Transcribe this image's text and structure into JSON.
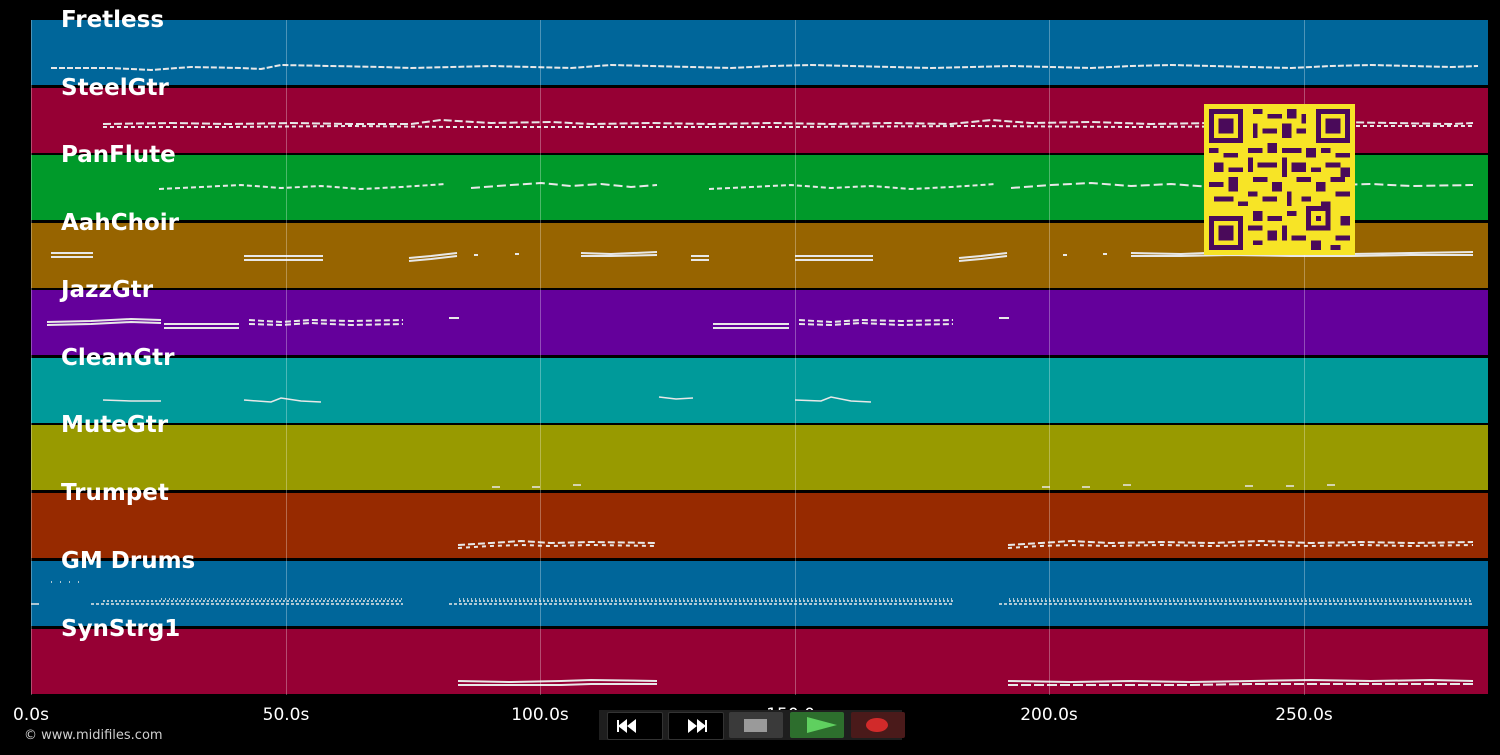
{
  "tracks": [
    {
      "name": "Fretless",
      "color": "#00669a"
    },
    {
      "name": "SteelGtr",
      "color": "#960034"
    },
    {
      "name": "PanFlute",
      "color": "#009a2a"
    },
    {
      "name": "AahChoir",
      "color": "#976400"
    },
    {
      "name": "JazzGtr",
      "color": "#64009b"
    },
    {
      "name": "CleanGtr",
      "color": "#009a9a"
    },
    {
      "name": "MuteGtr",
      "color": "#989a00"
    },
    {
      "name": "Trumpet",
      "color": "#972a00"
    },
    {
      "name": "GM Drums",
      "color": "#00669a"
    },
    {
      "name": "SynStrg1",
      "color": "#960034"
    }
  ],
  "timeline": {
    "ticks": [
      "0.0s",
      "50.0s",
      "100.0s",
      "150.0s",
      "200.0s",
      "250.0s"
    ]
  },
  "copyright": "© www.midifiles.com",
  "transport": {
    "rewind_icon": "rewind-icon",
    "forward_icon": "fast-forward-icon",
    "stop_icon": "stop-icon",
    "play_icon": "play-icon",
    "record_icon": "record-icon"
  },
  "qr_icon": "qr-code-icon"
}
